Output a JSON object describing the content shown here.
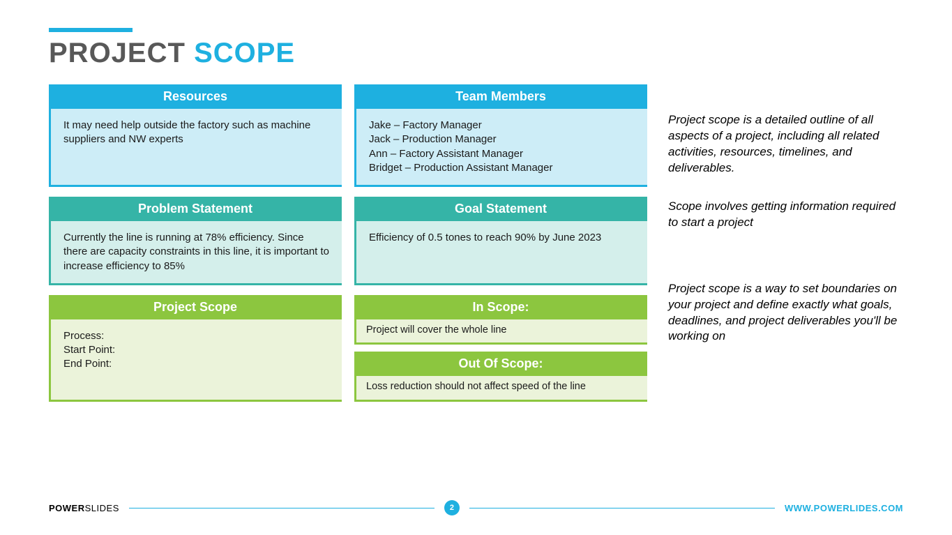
{
  "colors": {
    "accent": "#1EB0E0",
    "title_dark": "#585858",
    "row1_head": "#1EB0E0",
    "row1_body": "#CDEDF7",
    "row1_border": "#1EB0E0",
    "row2_head": "#35B4A7",
    "row2_body": "#D4EFEB",
    "row2_border": "#35B4A7",
    "row3_head": "#8CC63F",
    "row3_body": "#EBF3DA",
    "row3_border": "#8CC63F",
    "footer_line": "#1EB0E0",
    "page_badge": "#1EB0E0",
    "site_link": "#1EB0E0",
    "text": "#1a1a1a"
  },
  "title": {
    "word1": "PROJECT",
    "word2": "SCOPE"
  },
  "cards": {
    "resources": {
      "head": "Resources",
      "body": "It may need help outside the factory such as machine suppliers and NW experts"
    },
    "team": {
      "head": "Team Members",
      "lines": [
        "Jake – Factory Manager",
        "Jack – Production Manager",
        "Ann – Factory Assistant Manager",
        "Bridget – Production Assistant Manager"
      ]
    },
    "problem": {
      "head": "Problem Statement",
      "body": "Currently the line is running at 78% efficiency. Since there are capacity constraints in this line, it is important to increase efficiency to 85%"
    },
    "goal": {
      "head": "Goal Statement",
      "body": "Efficiency of 0.5 tones to reach 90% by June 2023"
    },
    "scope": {
      "head": "Project Scope",
      "lines": [
        "Process:",
        "Start Point:",
        "End Point:"
      ]
    },
    "in_scope": {
      "head": "In Scope:",
      "body": "Project will cover the whole line"
    },
    "out_scope": {
      "head": "Out Of Scope:",
      "body": "Loss reduction should not affect speed of the line"
    }
  },
  "sidebar": {
    "p1": "Project scope is a detailed outline of all aspects of a project, including all related activities, resources, timelines, and deliverables.",
    "p2": "Scope involves getting information required to start a project",
    "p3": "Project scope is a way to set boundaries on your project and define exactly what goals, deadlines, and project deliverables you'll be working on"
  },
  "footer": {
    "brand1": "POWER",
    "brand2": "SLIDES",
    "page": "2",
    "site": "WWW.POWERLIDES.COM"
  }
}
